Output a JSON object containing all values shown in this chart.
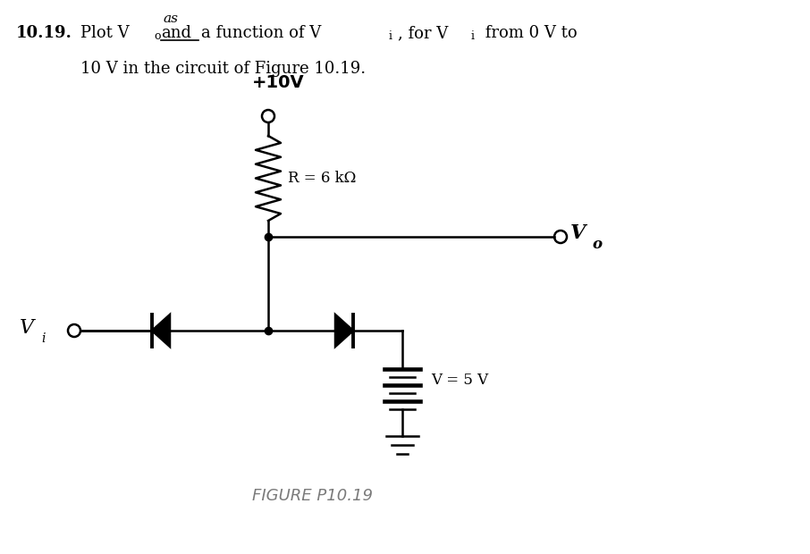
{
  "bg_color": "#ffffff",
  "text_color": "#000000",
  "figure_caption_color": "#7a7a7a",
  "line_color": "#000000",
  "line_width": 1.8,
  "supply_label": "+10V",
  "resistor_label": "R = 6 kΩ",
  "battery_label": "V = 5 V",
  "figure_label": "FIGURE P10.19"
}
